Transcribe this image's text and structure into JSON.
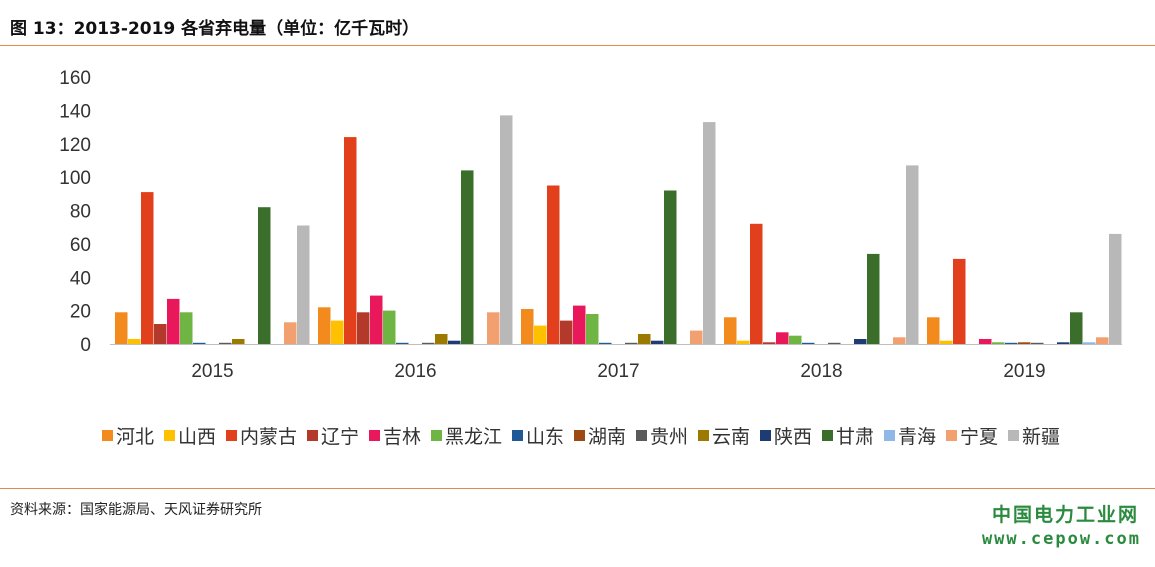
{
  "header": {
    "title": "图 13：2013-2019 各省弃电量（单位：亿千瓦时）"
  },
  "footer": {
    "source": "资料来源：国家能源局、天风证券研究所",
    "watermark_cn": "中国电力工业网",
    "watermark_url": "www.cepow.com"
  },
  "chart_data": {
    "type": "bar",
    "title": "图 13：2013-2019 各省弃电量（单位：亿千瓦时）",
    "categories": [
      "2015",
      "2016",
      "2017",
      "2018",
      "2019"
    ],
    "ylim": [
      0,
      160
    ],
    "yticks": [
      0,
      20,
      40,
      60,
      80,
      100,
      120,
      140,
      160
    ],
    "grid": false,
    "legend": "bottom",
    "series": [
      {
        "name": "河北",
        "color": "#f28a1e",
        "values": [
          19,
          22,
          21,
          16,
          16
        ]
      },
      {
        "name": "山西",
        "color": "#ffc000",
        "values": [
          3,
          14,
          11,
          2,
          2
        ]
      },
      {
        "name": "内蒙古",
        "color": "#e2401c",
        "values": [
          91,
          124,
          95,
          72,
          51
        ]
      },
      {
        "name": "辽宁",
        "color": "#b33a2b",
        "values": [
          12,
          19,
          14,
          1,
          0
        ]
      },
      {
        "name": "吉林",
        "color": "#e8185a",
        "values": [
          27,
          29,
          23,
          7,
          3
        ]
      },
      {
        "name": "黑龙江",
        "color": "#6fb543",
        "values": [
          19,
          20,
          18,
          5,
          1
        ]
      },
      {
        "name": "山东",
        "color": "#1f5a96",
        "values": [
          0,
          0,
          0,
          0,
          0
        ]
      },
      {
        "name": "湖南",
        "color": "#9c4a12",
        "values": [
          0,
          0,
          0,
          0,
          1
        ]
      },
      {
        "name": "贵州",
        "color": "#5a5a5a",
        "values": [
          0,
          0,
          0,
          0,
          0
        ]
      },
      {
        "name": "云南",
        "color": "#9c7a00",
        "values": [
          3,
          6,
          6,
          0,
          0
        ]
      },
      {
        "name": "陕西",
        "color": "#1f3b73",
        "values": [
          0,
          2,
          2,
          3,
          1
        ]
      },
      {
        "name": "甘肃",
        "color": "#3b6e2a",
        "values": [
          82,
          104,
          92,
          54,
          19
        ]
      },
      {
        "name": "青海",
        "color": "#8fb8e8",
        "values": [
          0,
          0,
          0,
          0,
          1
        ]
      },
      {
        "name": "宁夏",
        "color": "#f2a070",
        "values": [
          13,
          19,
          8,
          4,
          4
        ]
      },
      {
        "name": "新疆",
        "color": "#b8b8b8",
        "values": [
          71,
          137,
          133,
          107,
          66
        ]
      }
    ]
  }
}
